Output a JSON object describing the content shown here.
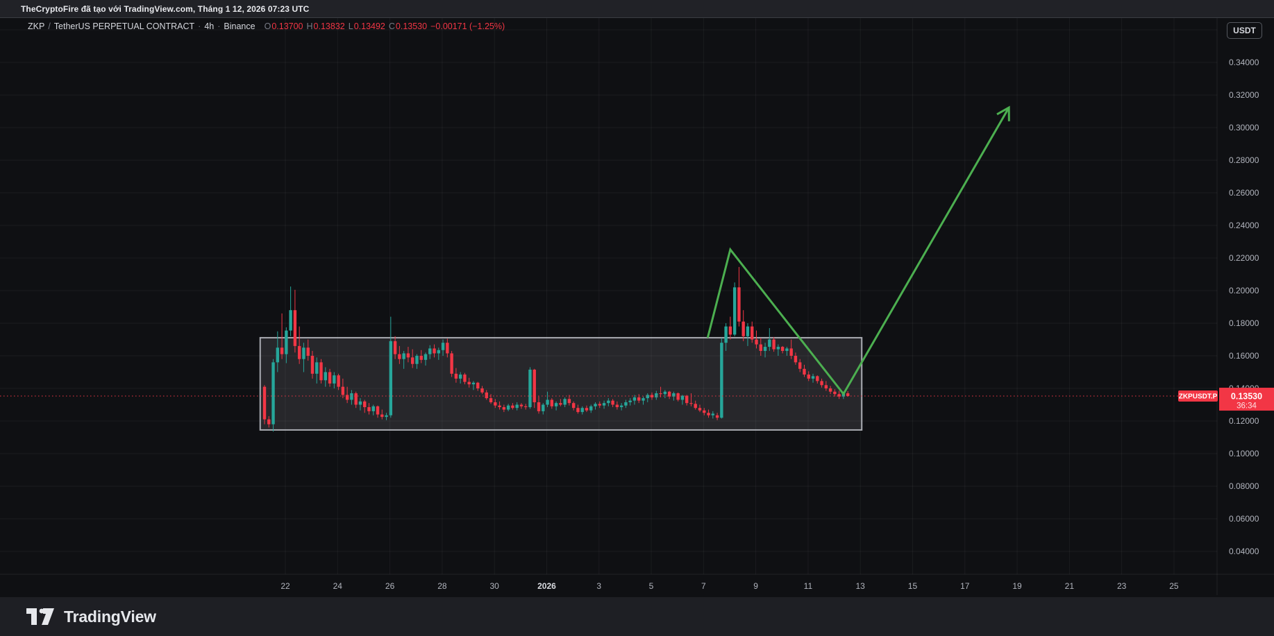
{
  "attribution_bar": {
    "text": "TheCryptoFire đã tạo với TradingView.com, Tháng 1 12, 2026 07:23 UTC"
  },
  "toolbar": {
    "currency_button": "USDT"
  },
  "legend": {
    "symbol": "ZKP",
    "separator": "/",
    "market": "TetherUS PERPETUAL CONTRACT",
    "dot1": "·",
    "interval": "4h",
    "dot2": "·",
    "exchange": "Binance",
    "open_label": "O",
    "open": "0.13700",
    "high_label": "H",
    "high": "0.13832",
    "low_label": "L",
    "low": "0.13492",
    "close_label": "C",
    "close": "0.13530",
    "change": "−0.00171 (−1.25%)"
  },
  "price_label": {
    "symbol_badge": "ZKPUSDT.P",
    "price": "0.13530",
    "countdown": "36:34"
  },
  "footer": {
    "brand": "TradingView"
  },
  "chart_data": {
    "type": "candlestick",
    "title": "ZKP / TetherUS PERPETUAL CONTRACT · 4h · Binance",
    "interval": "4h",
    "exchange": "Binance",
    "current_ohlc": {
      "open": 0.137,
      "high": 0.13832,
      "low": 0.13492,
      "close": 0.1353,
      "change": -0.00171,
      "change_pct": -1.25
    },
    "last_price": 0.1353,
    "countdown": "36:34",
    "colors": {
      "up": "#26a69a",
      "down": "#f23645",
      "arrow": "#4caf50",
      "last_price_line": "#f23645"
    },
    "grid": true,
    "legend_position": "top-left",
    "y_axis": {
      "side": "right",
      "format_decimals": 5,
      "range_top": 0.362,
      "range_bottom": 0.028,
      "ticks": [
        0.34,
        0.32,
        0.3,
        0.28,
        0.26,
        0.24,
        0.22,
        0.2,
        0.18,
        0.16,
        0.14,
        0.12,
        0.1,
        0.08,
        0.06,
        0.04
      ],
      "grid_extra_ticks": [
        0.36
      ]
    },
    "x_axis": {
      "tick_interval_days": 2,
      "ticks": [
        {
          "label": "22"
        },
        {
          "label": "24"
        },
        {
          "label": "26"
        },
        {
          "label": "28"
        },
        {
          "label": "30"
        },
        {
          "label": "2026",
          "major": true
        },
        {
          "label": "3"
        },
        {
          "label": "5"
        },
        {
          "label": "7"
        },
        {
          "label": "9"
        },
        {
          "label": "11"
        },
        {
          "label": "13"
        },
        {
          "label": "15"
        },
        {
          "label": "17"
        },
        {
          "label": "19"
        },
        {
          "label": "21"
        },
        {
          "label": "23"
        },
        {
          "label": "25"
        }
      ]
    },
    "candles": {
      "note": "4h OHLC, estimated from plot",
      "ohlc": [
        [
          0.141,
          0.142,
          0.118,
          0.121
        ],
        [
          0.121,
          0.123,
          0.116,
          0.118
        ],
        [
          0.118,
          0.158,
          0.1135,
          0.156
        ],
        [
          0.156,
          0.175,
          0.15,
          0.165
        ],
        [
          0.165,
          0.186,
          0.158,
          0.161
        ],
        [
          0.161,
          0.1775,
          0.1555,
          0.1755
        ],
        [
          0.1755,
          0.2025,
          0.172,
          0.188
        ],
        [
          0.188,
          0.2005,
          0.162,
          0.166
        ],
        [
          0.166,
          0.178,
          0.155,
          0.158
        ],
        [
          0.158,
          0.168,
          0.15,
          0.165
        ],
        [
          0.165,
          0.17,
          0.157,
          0.16
        ],
        [
          0.16,
          0.163,
          0.146,
          0.149
        ],
        [
          0.149,
          0.159,
          0.143,
          0.156
        ],
        [
          0.156,
          0.158,
          0.143,
          0.145
        ],
        [
          0.145,
          0.153,
          0.141,
          0.15
        ],
        [
          0.15,
          0.152,
          0.141,
          0.143
        ],
        [
          0.143,
          0.15,
          0.14,
          0.148
        ],
        [
          0.148,
          0.149,
          0.139,
          0.141
        ],
        [
          0.141,
          0.146,
          0.134,
          0.136
        ],
        [
          0.136,
          0.141,
          0.131,
          0.133
        ],
        [
          0.133,
          0.139,
          0.13,
          0.137
        ],
        [
          0.137,
          0.138,
          0.128,
          0.13
        ],
        [
          0.13,
          0.134,
          0.1265,
          0.132
        ],
        [
          0.132,
          0.133,
          0.125,
          0.1285
        ],
        [
          0.1285,
          0.131,
          0.124,
          0.126
        ],
        [
          0.126,
          0.13,
          0.1235,
          0.129
        ],
        [
          0.129,
          0.1295,
          0.122,
          0.124
        ],
        [
          0.124,
          0.127,
          0.121,
          0.1225
        ],
        [
          0.1225,
          0.125,
          0.1205,
          0.1235
        ],
        [
          0.1235,
          0.184,
          0.122,
          0.169
        ],
        [
          0.169,
          0.172,
          0.158,
          0.161
        ],
        [
          0.161,
          0.166,
          0.155,
          0.158
        ],
        [
          0.158,
          0.163,
          0.152,
          0.1615
        ],
        [
          0.1615,
          0.1655,
          0.156,
          0.159
        ],
        [
          0.159,
          0.164,
          0.1525,
          0.155
        ],
        [
          0.155,
          0.161,
          0.152,
          0.16
        ],
        [
          0.16,
          0.1635,
          0.1555,
          0.1575
        ],
        [
          0.1575,
          0.162,
          0.154,
          0.161
        ],
        [
          0.161,
          0.1665,
          0.158,
          0.1645
        ],
        [
          0.1645,
          0.167,
          0.159,
          0.1615
        ],
        [
          0.1615,
          0.165,
          0.1575,
          0.1635
        ],
        [
          0.1635,
          0.17,
          0.16,
          0.168
        ],
        [
          0.168,
          0.1705,
          0.159,
          0.1615
        ],
        [
          0.1615,
          0.163,
          0.147,
          0.149
        ],
        [
          0.149,
          0.1525,
          0.1435,
          0.146
        ],
        [
          0.146,
          0.15,
          0.143,
          0.1485
        ],
        [
          0.1485,
          0.1495,
          0.1425,
          0.144
        ],
        [
          0.144,
          0.1465,
          0.1405,
          0.1425
        ],
        [
          0.1425,
          0.1445,
          0.139,
          0.1435
        ],
        [
          0.1435,
          0.144,
          0.1385,
          0.14
        ],
        [
          0.14,
          0.1415,
          0.1365,
          0.1375
        ],
        [
          0.1375,
          0.139,
          0.133,
          0.134
        ],
        [
          0.134,
          0.1365,
          0.1305,
          0.1315
        ],
        [
          0.1315,
          0.1335,
          0.128,
          0.1295
        ],
        [
          0.1295,
          0.132,
          0.127,
          0.1285
        ],
        [
          0.1285,
          0.13,
          0.1255,
          0.127
        ],
        [
          0.127,
          0.1305,
          0.126,
          0.1295
        ],
        [
          0.1295,
          0.131,
          0.127,
          0.128
        ],
        [
          0.128,
          0.1315,
          0.1265,
          0.13
        ],
        [
          0.13,
          0.131,
          0.1275,
          0.129
        ],
        [
          0.129,
          0.1305,
          0.127,
          0.1285
        ],
        [
          0.1285,
          0.153,
          0.1275,
          0.1515
        ],
        [
          0.1515,
          0.152,
          0.128,
          0.1315
        ],
        [
          0.1315,
          0.135,
          0.1245,
          0.126
        ],
        [
          0.126,
          0.131,
          0.124,
          0.13
        ],
        [
          0.13,
          0.138,
          0.1285,
          0.133
        ],
        [
          0.133,
          0.134,
          0.1275,
          0.129
        ],
        [
          0.129,
          0.132,
          0.1265,
          0.131
        ],
        [
          0.131,
          0.1335,
          0.129,
          0.13
        ],
        [
          0.13,
          0.1345,
          0.1285,
          0.1335
        ],
        [
          0.1335,
          0.136,
          0.1295,
          0.131
        ],
        [
          0.131,
          0.132,
          0.1265,
          0.128
        ],
        [
          0.128,
          0.13,
          0.1245,
          0.1255
        ],
        [
          0.1255,
          0.129,
          0.124,
          0.128
        ],
        [
          0.128,
          0.1295,
          0.1255,
          0.1265
        ],
        [
          0.1265,
          0.13,
          0.125,
          0.129
        ],
        [
          0.129,
          0.1315,
          0.127,
          0.1305
        ],
        [
          0.1305,
          0.132,
          0.128,
          0.1295
        ],
        [
          0.1295,
          0.1325,
          0.1275,
          0.131
        ],
        [
          0.131,
          0.134,
          0.129,
          0.1325
        ],
        [
          0.1325,
          0.1335,
          0.1285,
          0.13
        ],
        [
          0.13,
          0.132,
          0.127,
          0.1285
        ],
        [
          0.1285,
          0.131,
          0.1265,
          0.1295
        ],
        [
          0.1295,
          0.133,
          0.128,
          0.1315
        ],
        [
          0.1315,
          0.134,
          0.1295,
          0.1325
        ],
        [
          0.1325,
          0.136,
          0.13,
          0.1345
        ],
        [
          0.1345,
          0.1365,
          0.131,
          0.1325
        ],
        [
          0.1325,
          0.135,
          0.13,
          0.134
        ],
        [
          0.134,
          0.137,
          0.1315,
          0.136
        ],
        [
          0.136,
          0.1375,
          0.133,
          0.1345
        ],
        [
          0.1345,
          0.1385,
          0.133,
          0.137
        ],
        [
          0.137,
          0.141,
          0.1345,
          0.1365
        ],
        [
          0.1365,
          0.139,
          0.134,
          0.138
        ],
        [
          0.138,
          0.1385,
          0.1335,
          0.135
        ],
        [
          0.135,
          0.138,
          0.1325,
          0.137
        ],
        [
          0.137,
          0.1375,
          0.132,
          0.133
        ],
        [
          0.133,
          0.136,
          0.13,
          0.1355
        ],
        [
          0.1355,
          0.136,
          0.1295,
          0.131
        ],
        [
          0.131,
          0.137,
          0.129,
          0.1305
        ],
        [
          0.1305,
          0.1325,
          0.127,
          0.128
        ],
        [
          0.128,
          0.13,
          0.1255,
          0.1265
        ],
        [
          0.1265,
          0.128,
          0.1235,
          0.125
        ],
        [
          0.125,
          0.127,
          0.122,
          0.1235
        ],
        [
          0.1235,
          0.126,
          0.1215,
          0.1245
        ],
        [
          0.1235,
          0.125,
          0.1205,
          0.122
        ],
        [
          0.122,
          0.171,
          0.1215,
          0.168
        ],
        [
          0.168,
          0.18,
          0.163,
          0.178
        ],
        [
          0.178,
          0.184,
          0.17,
          0.173
        ],
        [
          0.173,
          0.205,
          0.172,
          0.202
        ],
        [
          0.202,
          0.2145,
          0.178,
          0.181
        ],
        [
          0.181,
          0.188,
          0.169,
          0.172
        ],
        [
          0.172,
          0.18,
          0.166,
          0.178
        ],
        [
          0.178,
          0.181,
          0.168,
          0.17
        ],
        [
          0.17,
          0.1755,
          0.1645,
          0.167
        ],
        [
          0.167,
          0.171,
          0.16,
          0.163
        ],
        [
          0.163,
          0.168,
          0.159,
          0.1655
        ],
        [
          0.1655,
          0.177,
          0.163,
          0.17
        ],
        [
          0.17,
          0.1715,
          0.1625,
          0.164
        ],
        [
          0.164,
          0.167,
          0.16,
          0.1655
        ],
        [
          0.1655,
          0.166,
          0.1615,
          0.163
        ],
        [
          0.163,
          0.1655,
          0.16,
          0.1645
        ],
        [
          0.1645,
          0.17,
          0.158,
          0.16
        ],
        [
          0.16,
          0.162,
          0.1545,
          0.156
        ],
        [
          0.156,
          0.158,
          0.15,
          0.152
        ],
        [
          0.152,
          0.1545,
          0.147,
          0.1485
        ],
        [
          0.1485,
          0.1505,
          0.1445,
          0.146
        ],
        [
          0.146,
          0.149,
          0.1435,
          0.1475
        ],
        [
          0.1475,
          0.148,
          0.143,
          0.1445
        ],
        [
          0.1445,
          0.146,
          0.1405,
          0.142
        ],
        [
          0.142,
          0.1445,
          0.1385,
          0.14
        ],
        [
          0.14,
          0.1415,
          0.1365,
          0.138
        ],
        [
          0.138,
          0.1395,
          0.135,
          0.1365
        ],
        [
          0.1365,
          0.1385,
          0.1335,
          0.135
        ],
        [
          0.135,
          0.138,
          0.1335,
          0.137
        ],
        [
          0.137,
          0.1383,
          0.1349,
          0.1353
        ]
      ]
    },
    "annotations": {
      "range_box": {
        "from_index": -1,
        "to_index": 137.2,
        "price_top": 0.1711,
        "price_bottom": 0.1145
      },
      "trend_arrow": {
        "points": [
          [
            101.8,
            0.171
          ],
          [
            107,
            0.2252
          ],
          [
            133,
            0.1366
          ],
          [
            171,
            0.3123
          ]
        ]
      }
    }
  }
}
